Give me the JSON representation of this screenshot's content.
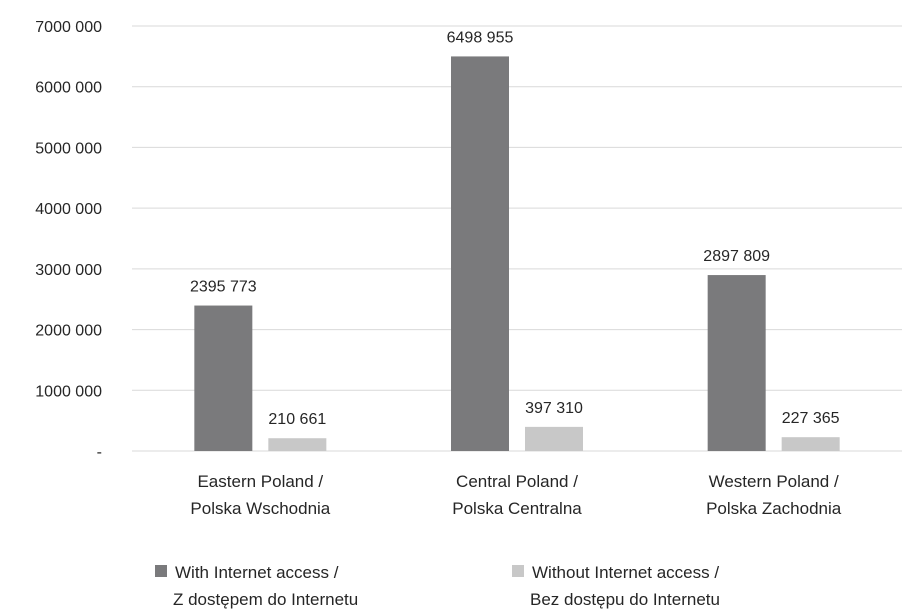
{
  "chart_data": {
    "type": "bar",
    "categories": [
      [
        "Eastern Poland /",
        "Polska Wschodnia"
      ],
      [
        "Central Poland /",
        "Polska Centralna"
      ],
      [
        "Western Poland /",
        "Polska Zachodnia"
      ]
    ],
    "series": [
      {
        "name": [
          "With Internet access /",
          "Z dostępem do  Internetu"
        ],
        "values": [
          2395773,
          6498955,
          2897809
        ],
        "value_labels": [
          "2395 773",
          "6498 955",
          "2897 809"
        ],
        "color": "#7a7a7c"
      },
      {
        "name": [
          "Without Internet access /",
          "Bez dostępu do Internetu"
        ],
        "values": [
          210661,
          397310,
          227365
        ],
        "value_labels": [
          "210 661",
          "397 310",
          "227 365"
        ],
        "color": "#c8c8c8"
      }
    ],
    "ylim": [
      0,
      7000000
    ],
    "yticks": [
      0,
      1000000,
      2000000,
      3000000,
      4000000,
      5000000,
      6000000,
      7000000
    ],
    "ytick_labels": [
      "-",
      "1000 000",
      "2000 000",
      "3000 000",
      "4000 000",
      "5000 000",
      "6000 000",
      "7000 000"
    ],
    "grid": true,
    "legend_position": "bottom"
  }
}
